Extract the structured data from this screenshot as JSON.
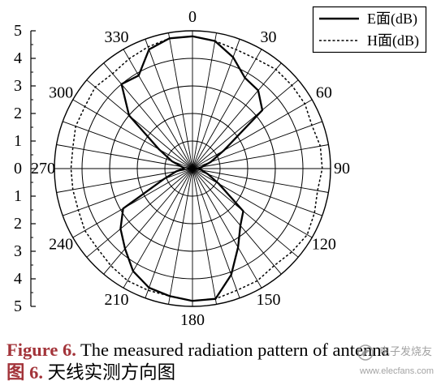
{
  "figure": {
    "caption_en_label": "Figure 6.",
    "caption_en_text": "The measured radiation pattern of antenna",
    "caption_zh_label": "图 6.",
    "caption_zh_text": "天线实测方向图"
  },
  "watermark": {
    "icon": "elecfans-logo-icon",
    "name": "电子发烧友",
    "url": "www.elecfans.com"
  },
  "colors": {
    "caption_label": "#a3343a",
    "watermark": "#8c8c8c",
    "lines": "#000000"
  },
  "chart_data": {
    "type": "line",
    "polar": true,
    "theta": [
      0,
      10,
      20,
      30,
      40,
      50,
      60,
      70,
      80,
      90,
      100,
      110,
      120,
      130,
      140,
      150,
      160,
      170,
      180,
      190,
      200,
      210,
      220,
      230,
      240,
      250,
      260,
      270,
      280,
      290,
      300,
      310,
      320,
      330,
      340,
      350
    ],
    "rlim": [
      0,
      5
    ],
    "r_ticks": [
      1,
      2,
      3,
      4,
      5
    ],
    "r_axis_tick_labels": [
      "5",
      "4",
      "3",
      "2",
      "1",
      "0",
      "1",
      "2",
      "3",
      "4",
      "5"
    ],
    "theta_ticks": [
      0,
      30,
      60,
      90,
      120,
      150,
      180,
      210,
      240,
      270,
      300,
      330
    ],
    "theta_tick_labels": [
      "0",
      "30",
      "60",
      "90",
      "120",
      "150",
      "180",
      "210",
      "240",
      "270",
      "300",
      "330"
    ],
    "grid": true,
    "theta_grid_step": 10,
    "legend": "top-right",
    "series": [
      {
        "name": "E面(dB)",
        "dashed": false,
        "r": [
          4.8,
          4.7,
          4.3,
          3.8,
          3.7,
          3.3,
          1.3,
          0.7,
          0.35,
          0.2,
          0.35,
          0.6,
          1.1,
          2.4,
          2.7,
          3.3,
          4.1,
          4.8,
          4.8,
          4.7,
          4.6,
          4.3,
          3.8,
          3.4,
          2.9,
          1.1,
          0.6,
          0.3,
          0.4,
          0.8,
          1.4,
          3.0,
          4.0,
          3.9,
          4.6,
          4.8
        ]
      },
      {
        "name": "H面(dB)",
        "dashed": true,
        "r": [
          4.8,
          4.7,
          4.6,
          4.6,
          4.7,
          4.7,
          4.7,
          4.6,
          4.7,
          4.7,
          4.6,
          4.7,
          4.8,
          4.7,
          4.6,
          4.7,
          4.7,
          4.8,
          4.8,
          4.7,
          4.7,
          4.7,
          4.6,
          4.5,
          4.5,
          4.4,
          4.4,
          4.4,
          4.4,
          4.5,
          4.5,
          4.6,
          4.5,
          4.6,
          4.7,
          4.8
        ]
      }
    ]
  }
}
